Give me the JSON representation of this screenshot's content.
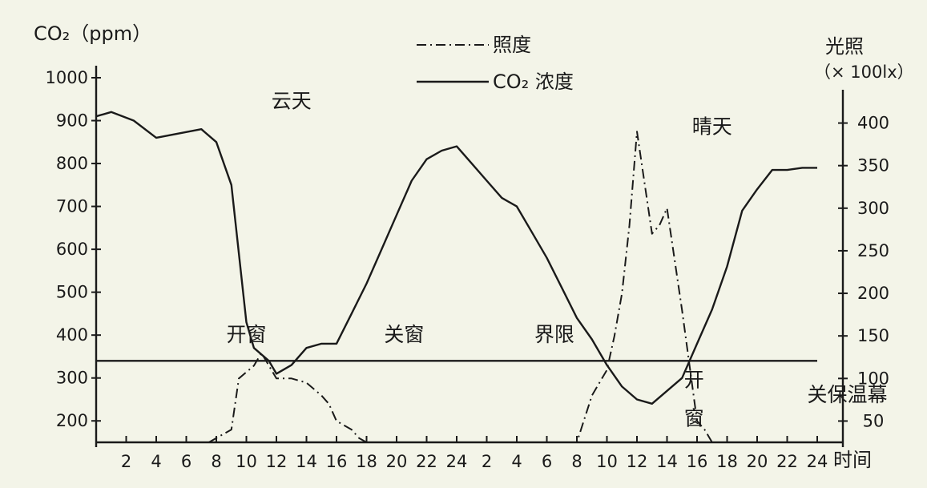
{
  "chart_data": {
    "type": "line",
    "title": "",
    "xlabel": "时间",
    "ylabel": "CO₂（ppm）",
    "y2label": [
      "光照",
      "（× 100lx）"
    ],
    "x_ticks": [
      "2",
      "4",
      "6",
      "8",
      "10",
      "12",
      "14",
      "16",
      "18",
      "20",
      "22",
      "24",
      "2",
      "4",
      "6",
      "8",
      "10",
      "12",
      "14",
      "16",
      "18",
      "20",
      "22",
      "24"
    ],
    "xlim": [
      0,
      48
    ],
    "ylim": [
      150,
      1000
    ],
    "y_ticks": [
      200,
      300,
      400,
      500,
      600,
      700,
      800,
      900,
      1000
    ],
    "y2lim": [
      25,
      425
    ],
    "y2_ticks": [
      50,
      100,
      150,
      200,
      250,
      300,
      350,
      400
    ],
    "legend": {
      "position": "top-center",
      "entries": [
        {
          "label": "照度",
          "style": "dash-dot"
        },
        {
          "label": "CO₂ 浓度",
          "style": "solid"
        }
      ]
    },
    "series": [
      {
        "name": "CO₂ 浓度",
        "axis": "left",
        "style": "solid",
        "x": [
          0,
          1,
          2.5,
          4,
          5.5,
          7,
          8,
          9,
          10,
          10.5,
          11.5,
          12,
          13,
          14,
          15,
          16,
          17,
          18,
          19,
          20,
          21,
          22,
          23,
          24,
          25,
          26,
          27,
          28,
          29,
          30,
          31,
          32,
          33,
          34,
          35,
          36,
          37,
          38,
          39,
          40,
          41,
          42,
          43,
          44,
          45,
          46,
          47,
          48
        ],
        "y": [
          910,
          920,
          900,
          860,
          870,
          880,
          850,
          750,
          430,
          370,
          340,
          310,
          330,
          370,
          380,
          380,
          450,
          520,
          600,
          680,
          760,
          810,
          830,
          840,
          800,
          760,
          720,
          700,
          640,
          580,
          510,
          440,
          390,
          330,
          280,
          250,
          240,
          270,
          300,
          380,
          460,
          560,
          690,
          740,
          785,
          785,
          790,
          790
        ]
      },
      {
        "name": "照度",
        "axis": "right",
        "style": "dash-dot",
        "x": [
          7.5,
          8,
          9,
          9.5,
          10.5,
          11,
          12,
          13,
          14,
          15,
          15.5,
          16,
          17,
          17.5,
          18,
          32,
          33,
          34,
          34.5,
          35,
          35.5,
          36,
          37,
          37.5,
          38,
          39,
          40,
          40.5,
          41
        ],
        "y": [
          25,
          30,
          40,
          100,
          115,
          130,
          100,
          100,
          95,
          80,
          70,
          50,
          40,
          30,
          25,
          25,
          80,
          110,
          150,
          200,
          280,
          390,
          270,
          280,
          300,
          180,
          50,
          40,
          25
        ]
      },
      {
        "name": "界限",
        "axis": "left",
        "style": "solid",
        "x": [
          0,
          48
        ],
        "y": [
          340,
          340
        ]
      }
    ],
    "annotations": [
      {
        "text": "云天",
        "x": 13,
        "y": 930
      },
      {
        "text": "晴天",
        "x": 41,
        "y": 870
      },
      {
        "text": "开窗",
        "x": 10,
        "y": 385
      },
      {
        "text": "关窗",
        "x": 20.5,
        "y": 385
      },
      {
        "text": "界限",
        "x": 30.5,
        "y": 385
      },
      {
        "text": "开",
        "x": 39.8,
        "y": 280
      },
      {
        "text": "窗",
        "x": 39.8,
        "y": 190
      },
      {
        "text": "关保温幕",
        "x": 50,
        "y": 245
      }
    ]
  }
}
